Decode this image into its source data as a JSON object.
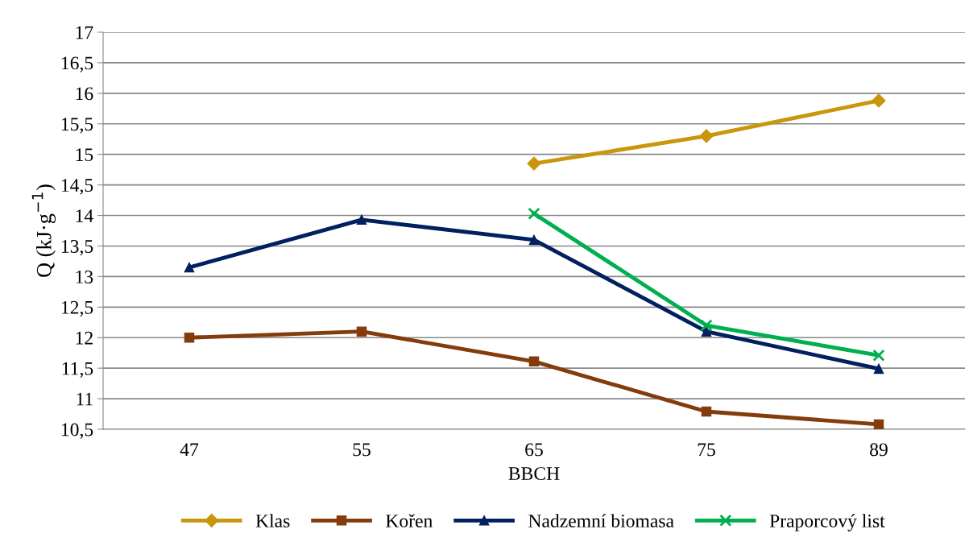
{
  "chart_data": {
    "type": "line",
    "xlabel": "BBCH",
    "ylabel": "Q (kJ·g$^{−1}$)",
    "categories": [
      "47",
      "55",
      "65",
      "75",
      "89"
    ],
    "series": [
      {
        "name": "Klas",
        "color": "#c9960c",
        "marker": "diamond",
        "values": [
          null,
          null,
          14.85,
          15.3,
          15.88
        ]
      },
      {
        "name": "Kořen",
        "color": "#843c0c",
        "marker": "square",
        "values": [
          12.0,
          12.1,
          11.61,
          10.79,
          10.58
        ]
      },
      {
        "name": "Nadzemní biomasa",
        "color": "#002060",
        "marker": "triangle",
        "values": [
          13.15,
          13.93,
          13.6,
          12.1,
          11.49
        ]
      },
      {
        "name": "Praporcový list",
        "color": "#00b050",
        "marker": "cross",
        "values": [
          null,
          null,
          14.03,
          12.2,
          11.71
        ]
      }
    ],
    "ylim": [
      10.5,
      17
    ],
    "yticks": [
      {
        "value": 10.5,
        "label": "10,5"
      },
      11,
      {
        "value": 11.5,
        "label": "11,5"
      },
      12,
      {
        "value": 12.5,
        "label": "12,5"
      },
      13,
      {
        "value": 13.5,
        "label": "13,5"
      },
      14,
      {
        "value": 14.5,
        "label": "14,5"
      },
      15,
      {
        "value": 15.5,
        "label": "15,5"
      },
      16,
      {
        "value": 16.5,
        "label": "16,5"
      },
      17
    ],
    "grid": "y",
    "legend": "bottom",
    "line_style": "solid"
  }
}
